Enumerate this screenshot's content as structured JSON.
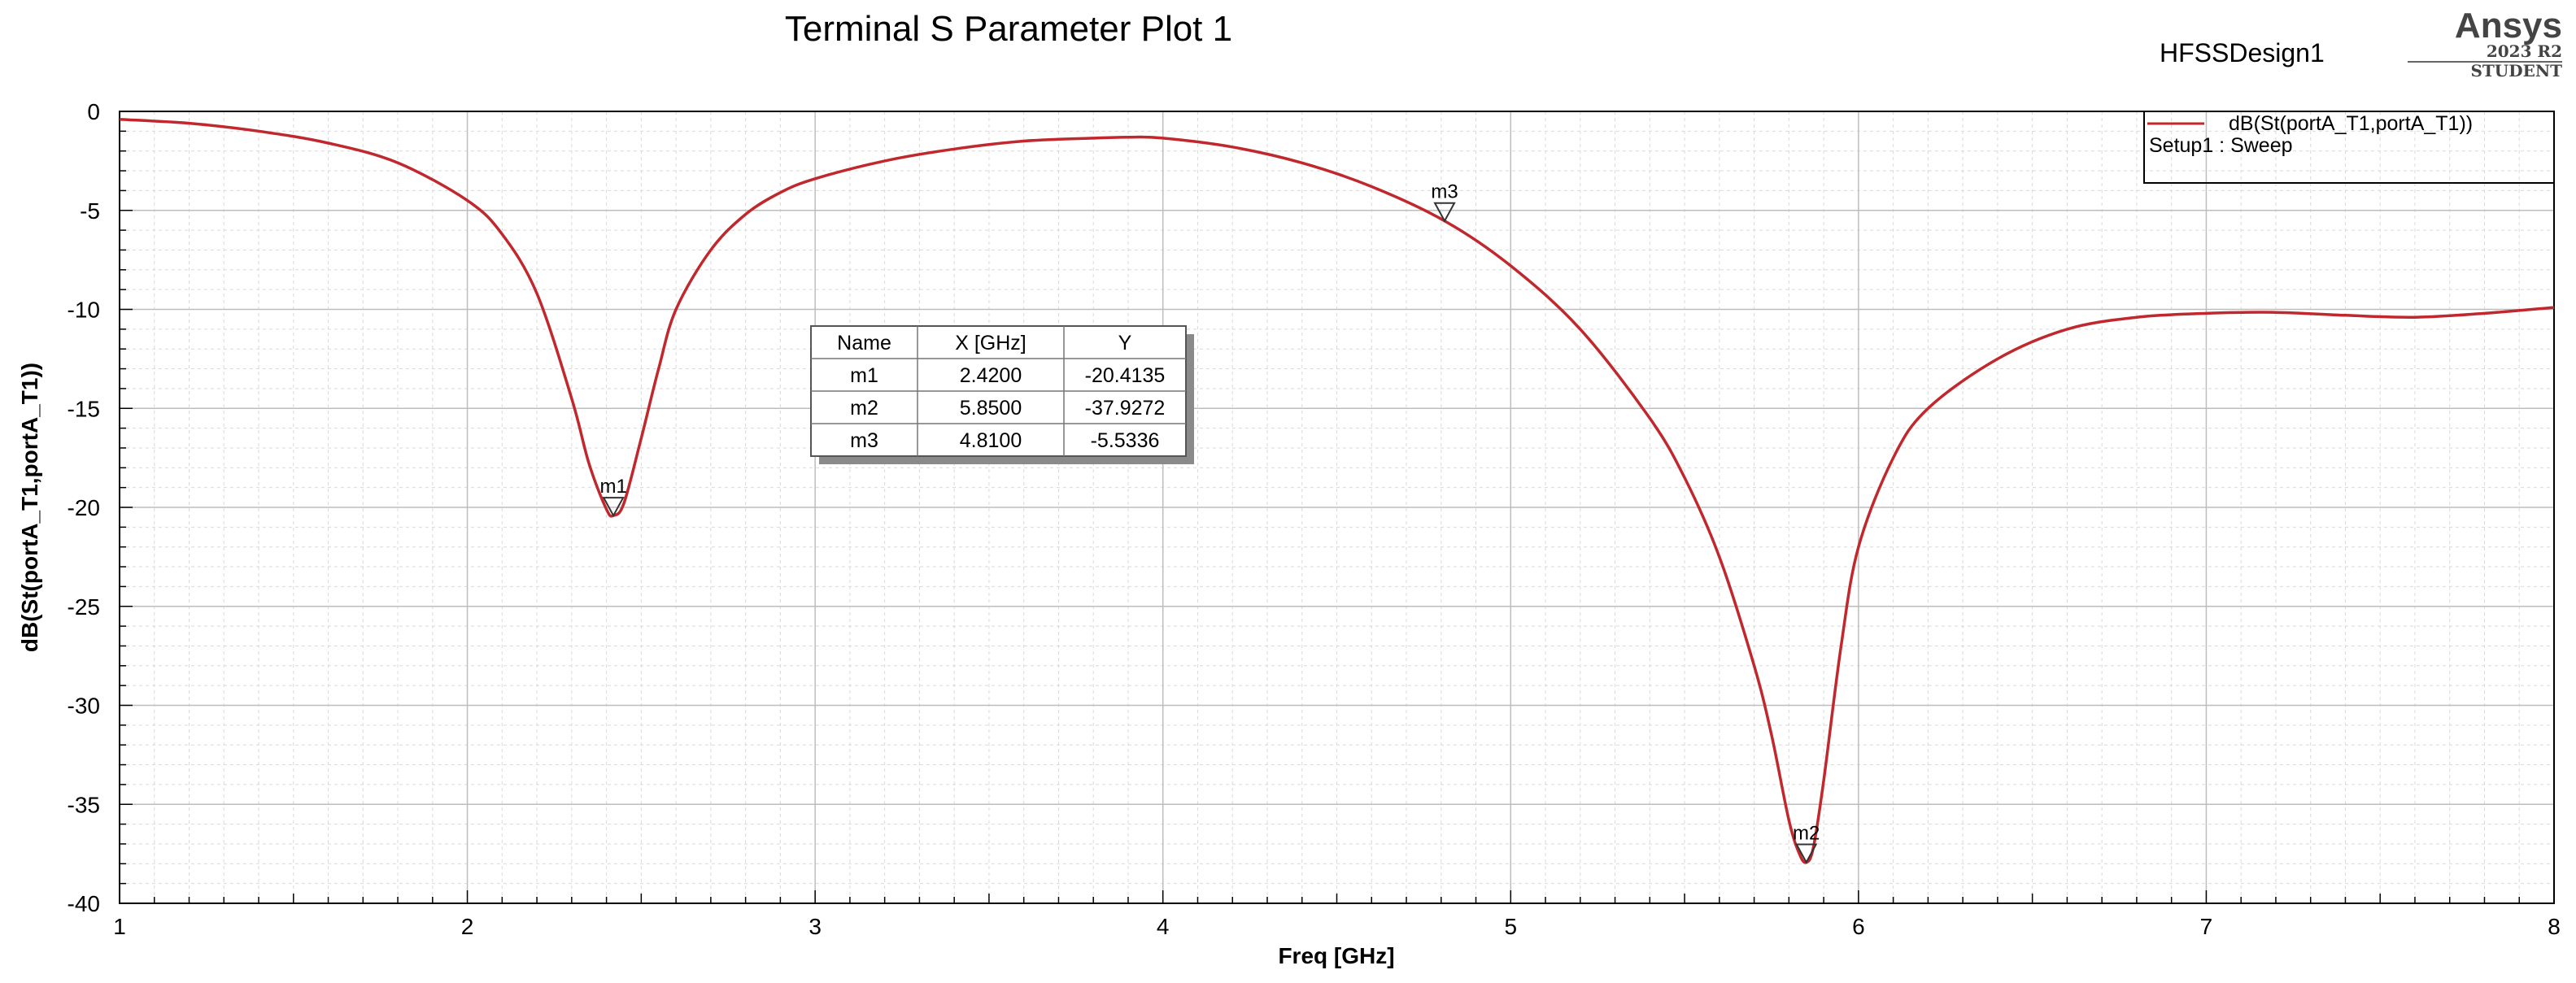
{
  "header": {
    "title": "Terminal S Parameter Plot 1",
    "design_name": "HFSSDesign1",
    "brand": "Ansys",
    "version": "2023 R2",
    "edition": "STUDENT"
  },
  "legend": {
    "series_label": "dB(St(portA_T1,portA_T1))",
    "setup_label": "Setup1 : Sweep",
    "placement": "top-right"
  },
  "marker_table": {
    "headers": [
      "Name",
      "X [GHz]",
      "Y"
    ],
    "rows": [
      [
        "m1",
        "2.4200",
        "-20.4135"
      ],
      [
        "m2",
        "5.8500",
        "-37.9272"
      ],
      [
        "m3",
        "4.8100",
        "-5.5336"
      ]
    ]
  },
  "colors": {
    "series": "#c0282d",
    "grid": "#d9d9d9",
    "table_shadow": "#8a8a8a"
  },
  "chart_data": {
    "type": "line",
    "title": "Terminal S Parameter Plot 1",
    "xlabel": "Freq [GHz]",
    "ylabel": "dB(St(portA_T1,portA_T1))",
    "xlim": [
      1,
      8
    ],
    "ylim": [
      -40,
      0
    ],
    "xticks": [
      1,
      2,
      3,
      4,
      5,
      6,
      7,
      8
    ],
    "yticks": [
      0,
      -5,
      -10,
      -15,
      -20,
      -25,
      -30,
      -35,
      -40
    ],
    "grid": true,
    "legend_position": "top-right",
    "series": [
      {
        "name": "dB(St(portA_T1,portA_T1))",
        "x": [
          1.0,
          1.2,
          1.4,
          1.6,
          1.8,
          2.0,
          2.1,
          2.2,
          2.3,
          2.35,
          2.4,
          2.42,
          2.45,
          2.5,
          2.55,
          2.6,
          2.7,
          2.8,
          2.9,
          3.0,
          3.2,
          3.4,
          3.6,
          3.8,
          3.9,
          4.0,
          4.2,
          4.4,
          4.6,
          4.81,
          5.0,
          5.2,
          5.4,
          5.5,
          5.6,
          5.7,
          5.75,
          5.8,
          5.83,
          5.85,
          5.87,
          5.9,
          5.95,
          6.0,
          6.1,
          6.2,
          6.4,
          6.6,
          6.8,
          7.0,
          7.2,
          7.4,
          7.6,
          7.8,
          8.0
        ],
        "y": [
          -0.4,
          -0.6,
          -1.0,
          -1.6,
          -2.6,
          -4.5,
          -6.2,
          -9.2,
          -14.5,
          -17.8,
          -20.1,
          -20.41,
          -19.8,
          -16.5,
          -13.0,
          -10.0,
          -7.0,
          -5.2,
          -4.1,
          -3.4,
          -2.5,
          -1.9,
          -1.5,
          -1.35,
          -1.3,
          -1.35,
          -1.8,
          -2.6,
          -3.8,
          -5.53,
          -7.8,
          -11.0,
          -15.5,
          -18.5,
          -22.5,
          -28.0,
          -31.5,
          -35.8,
          -37.5,
          -37.93,
          -37.2,
          -33.8,
          -27.0,
          -22.0,
          -17.5,
          -15.0,
          -12.5,
          -11.0,
          -10.4,
          -10.2,
          -10.15,
          -10.3,
          -10.4,
          -10.2,
          -9.9
        ]
      }
    ],
    "markers": [
      {
        "name": "m1",
        "x": 2.42,
        "y": -20.4135
      },
      {
        "name": "m2",
        "x": 5.85,
        "y": -37.9272
      },
      {
        "name": "m3",
        "x": 4.81,
        "y": -5.5336
      }
    ]
  }
}
